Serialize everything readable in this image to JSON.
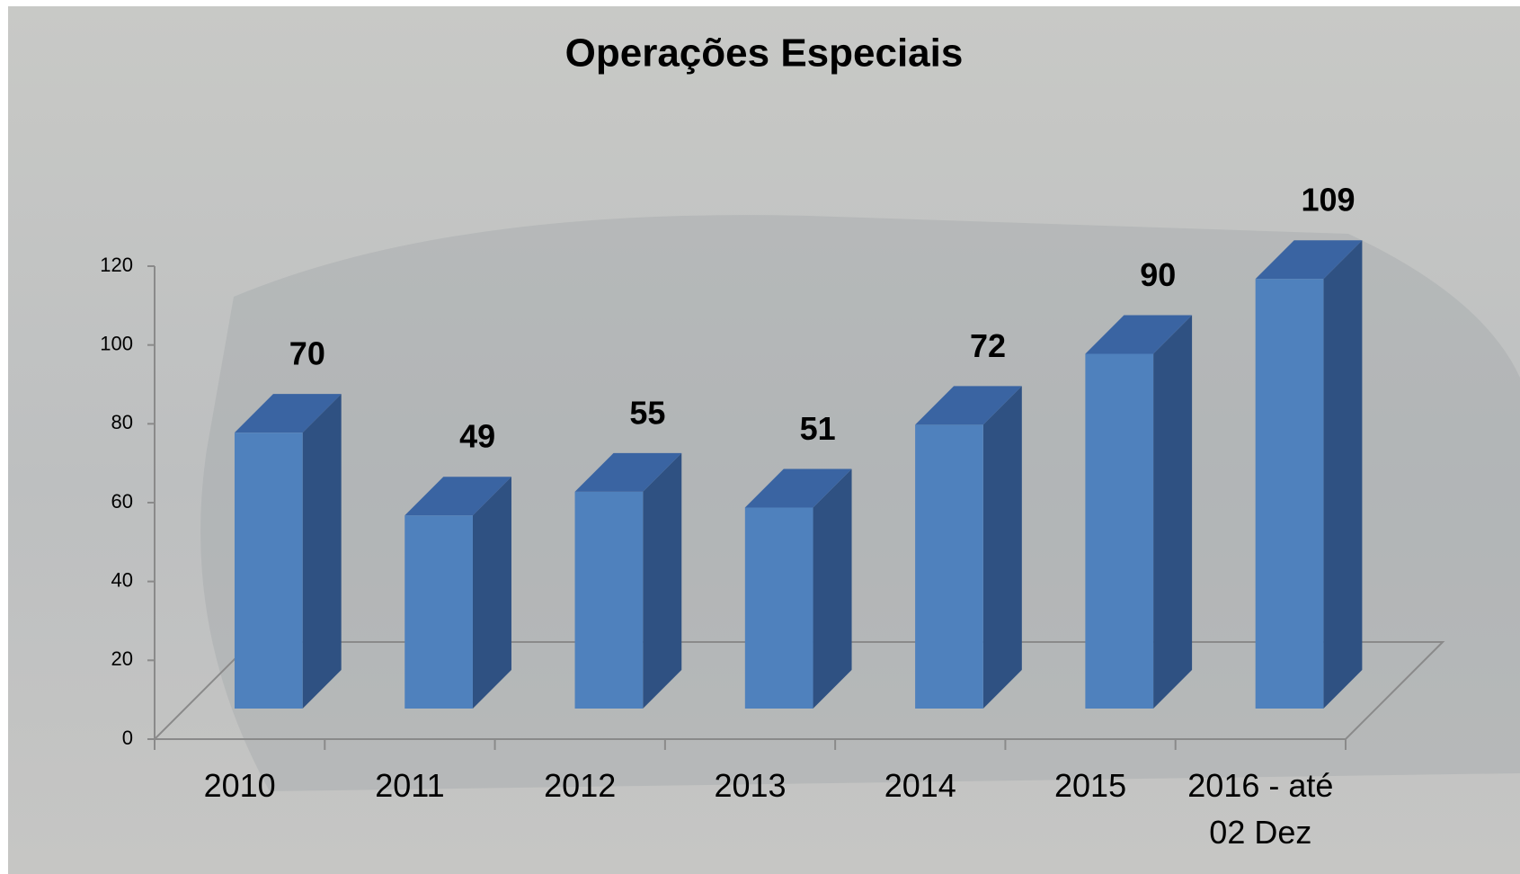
{
  "chart_data": {
    "type": "bar3d",
    "title": "Operações Especiais",
    "categories": [
      "2010",
      "2011",
      "2012",
      "2013",
      "2014",
      "2015",
      "2016 - até 02 Dez"
    ],
    "values": [
      70,
      49,
      55,
      51,
      72,
      90,
      109
    ],
    "color": "#4f81bd",
    "ylim": [
      0,
      120
    ],
    "yticks": [
      0,
      20,
      40,
      60,
      80,
      100,
      120
    ]
  }
}
